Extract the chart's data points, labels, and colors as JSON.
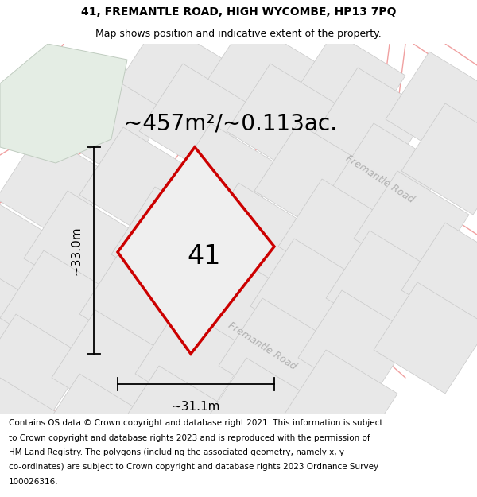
{
  "title_line1": "41, FREMANTLE ROAD, HIGH WYCOMBE, HP13 7PQ",
  "title_line2": "Map shows position and indicative extent of the property.",
  "area_text": "~457m²/~0.113ac.",
  "label_number": "41",
  "dim_vertical": "~33.0m",
  "dim_horizontal": "~31.1m",
  "road_label_right": "Fremantle Road",
  "road_label_mid": "Fremantle Road",
  "footer_lines": [
    "Contains OS data © Crown copyright and database right 2021. This information is subject",
    "to Crown copyright and database rights 2023 and is reproduced with the permission of",
    "HM Land Registry. The polygons (including the associated geometry, namely x, y",
    "co-ordinates) are subject to Crown copyright and database rights 2023 Ordnance Survey",
    "100026316."
  ],
  "map_bg": "#f5f5f5",
  "parcel_color": "#cc0000",
  "parcel_fill": "#efefef",
  "road_line_color": "#f0a0a0",
  "plot_outline_color": "#c8c8c8",
  "plot_fill": "#e8e8e8",
  "green_fill": "#e4ede4",
  "green_edge": "#c0ccc0",
  "title_fontsize": 10,
  "subtitle_fontsize": 9,
  "area_fontsize": 20,
  "label_fontsize": 24,
  "dim_fontsize": 11,
  "road_label_fontsize": 9,
  "footer_fontsize": 7.5
}
